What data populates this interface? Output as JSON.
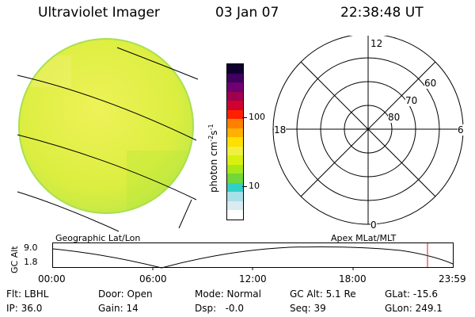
{
  "header": {
    "instrument": "Ultraviolet Imager",
    "date": "03 Jan 07",
    "time": "22:38:48 UT"
  },
  "colorbar": {
    "unit_label_base": "photon cm",
    "unit_sup1": "-2",
    "unit_mid": "s",
    "unit_sup2": "-1",
    "tick_100": "100",
    "tick_10": "10",
    "colors": [
      "#ffffff",
      "#d8ecf2",
      "#a8e0e8",
      "#30d0c8",
      "#70d838",
      "#a8e818",
      "#d8f010",
      "#f0f040",
      "#ffe000",
      "#ffb000",
      "#ff8000",
      "#ff2000",
      "#d00030",
      "#a00050",
      "#700070",
      "#400060",
      "#100030"
    ]
  },
  "earth_view": {
    "fill_color": "#e4f040",
    "edge_color": "#a8e050"
  },
  "polar_plot": {
    "label_top": "12",
    "label_bottom": "0",
    "label_left": "18",
    "label_right": "6",
    "lat_60": "60",
    "lat_70": "70",
    "lat_80": "80"
  },
  "timeline": {
    "left_caption": "Geographic Lat/Lon",
    "right_caption": "Apex  MLat/MLT",
    "ylabel": "GC Alt",
    "y_top": "9.0",
    "y_bottom": "1.8",
    "ticks": [
      "00:00",
      "06:00",
      "12:00",
      "18:00",
      "23:59"
    ],
    "marker_color": "#cc2020"
  },
  "status": {
    "flt": "Flt: LBHL",
    "ip": "IP: 36.0",
    "door": "Door: Open",
    "gain": "Gain: 14",
    "mode": "Mode: Normal",
    "dsp": "Dsp:   -0.0",
    "gcalt": "GC Alt: 5.1 Re",
    "seq": "Seq: 39",
    "glat": "GLat: -15.6",
    "glon": "GLon: 249.1"
  }
}
